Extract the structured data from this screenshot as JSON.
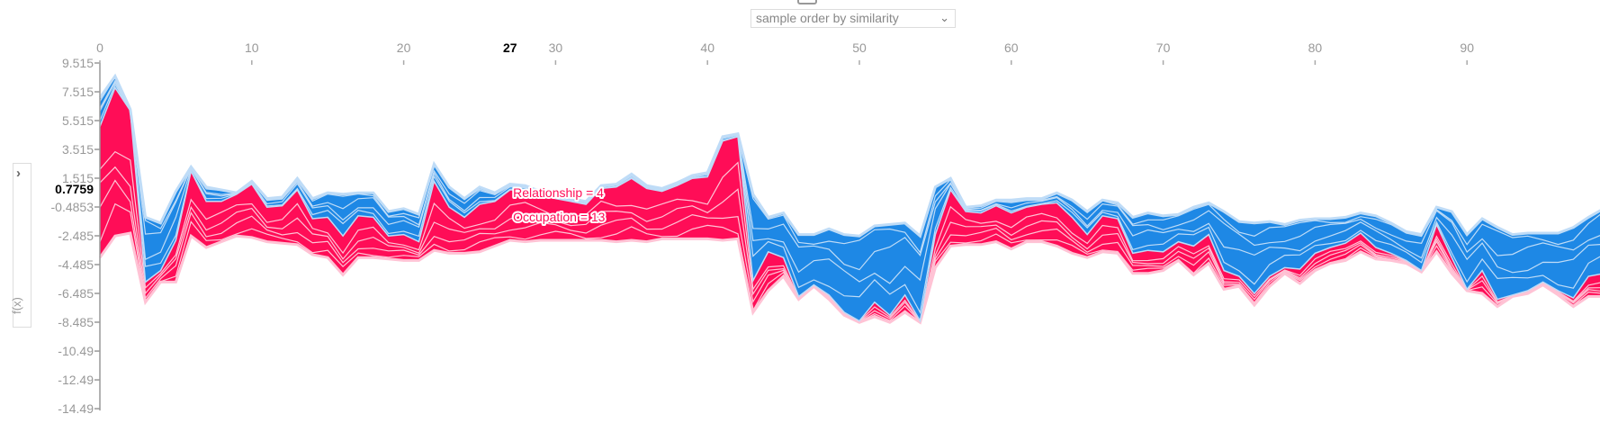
{
  "controls": {
    "order_select": "sample order by similarity",
    "ylabel_toggle": "f(x)"
  },
  "colors": {
    "positive": "#ff0d57",
    "negative": "#1e88e5",
    "positive_light": "#ffc3d5",
    "negative_light": "#bfdcf7"
  },
  "chart_data": {
    "type": "area",
    "title": "",
    "xlabel": "",
    "ylabel": "f(x)",
    "x_ticks": [
      "0",
      "10",
      "20",
      "30",
      "40",
      "50",
      "60",
      "70",
      "80",
      "90"
    ],
    "x_tick_values": [
      0,
      10,
      20,
      30,
      40,
      50,
      60,
      70,
      80,
      90
    ],
    "highlight_x": "27",
    "highlight_x_value": 27,
    "y_ticks": [
      "9.515",
      "7.515",
      "5.515",
      "3.515",
      "1.515",
      "-0.4853",
      "-2.485",
      "-4.485",
      "-6.485",
      "-8.485",
      "-10.49",
      "-12.49",
      "-14.49"
    ],
    "y_tick_values": [
      9.515,
      7.515,
      5.515,
      3.515,
      1.515,
      -0.4853,
      -2.485,
      -4.485,
      -6.485,
      -8.485,
      -10.49,
      -12.49,
      -14.49
    ],
    "ylim": [
      -14.49,
      9.515
    ],
    "xlim": [
      0,
      98.6
    ],
    "base_value_label": "0.7759",
    "base_value": 0.7759,
    "feature_labels": [
      {
        "text": "Relationship = 4",
        "x": 27.2,
        "y": 0.2
      },
      {
        "text": "Occupation = 13",
        "x": 27.2,
        "y": -1.5
      }
    ],
    "series": [
      {
        "name": "negative_top",
        "values": [
          7.1,
          8.6,
          6.3,
          -1.2,
          -1.6,
          0.6,
          2.3,
          0.9,
          0.7,
          0.5,
          1.3,
          0.1,
          0.2,
          1.5,
          0.1,
          0.5,
          0.4,
          0.5,
          0.5,
          -0.8,
          -0.6,
          -1.0,
          2.5,
          0.9,
          0.1,
          0.9,
          0.5,
          1.1,
          1.0,
          0.6,
          0.4,
          0.1,
          -0.1,
          1.0,
          1.1,
          1.8,
          1.0,
          0.8,
          1.2,
          1.7,
          1.9,
          4.4,
          4.6,
          0.4,
          -1.2,
          -0.9,
          -2.4,
          -2.4,
          -2.0,
          -2.4,
          -2.5,
          -1.8,
          -1.7,
          -1.6,
          -2.5,
          0.9,
          1.5,
          -0.5,
          -0.4,
          0.0,
          0.0,
          0.1,
          0.1,
          0.5,
          0.0,
          -0.8,
          0.0,
          -0.2,
          -1.2,
          -0.9,
          -1.1,
          -1.0,
          -0.5,
          -0.2,
          -0.8,
          -1.5,
          -1.6,
          -1.5,
          -1.7,
          -1.4,
          -1.3,
          -1.3,
          -1.2,
          -0.9,
          -1.1,
          -1.6,
          -2.2,
          -2.4,
          -0.5,
          -0.8,
          -2.4,
          -1.3,
          -1.9,
          -2.4,
          -2.3,
          -2.3,
          -2.3,
          -1.9,
          -1.2,
          -0.6
        ]
      },
      {
        "name": "f(x)",
        "values": [
          5.1,
          7.8,
          6.2,
          -5.7,
          -4.9,
          -2.8,
          2.0,
          -0.1,
          -0.1,
          0.4,
          1.1,
          -0.5,
          -0.4,
          0.7,
          -1.3,
          -1.2,
          -2.5,
          -1.1,
          -1.2,
          -2.5,
          -2.4,
          -2.9,
          1.3,
          -0.5,
          -1.2,
          -0.3,
          -0.1,
          0.7,
          0.7,
          0.4,
          0.1,
          -0.1,
          -0.3,
          0.8,
          0.9,
          1.5,
          0.8,
          0.6,
          1.0,
          1.5,
          1.6,
          4.1,
          4.4,
          -5.6,
          -3.6,
          -4.0,
          -6.7,
          -5.9,
          -6.6,
          -7.8,
          -8.4,
          -7.1,
          -8.0,
          -6.6,
          -8.4,
          -2.4,
          0.7,
          -0.8,
          -0.9,
          -0.4,
          -0.9,
          -0.5,
          -0.3,
          -0.2,
          -1.2,
          -2.4,
          -1.1,
          -1.3,
          -3.7,
          -3.5,
          -3.6,
          -2.9,
          -3.2,
          -2.4,
          -4.9,
          -5.3,
          -6.5,
          -5.3,
          -4.7,
          -4.8,
          -3.7,
          -3.3,
          -3.0,
          -2.3,
          -3.3,
          -3.7,
          -4.2,
          -4.9,
          -1.7,
          -4.0,
          -6.2,
          -4.9,
          -6.9,
          -6.6,
          -6.3,
          -5.7,
          -6.3,
          -6.8,
          -5.3,
          -5.1
        ]
      },
      {
        "name": "positive_bottom",
        "values": [
          -4.0,
          -2.5,
          -2.3,
          -7.1,
          -5.7,
          -5.7,
          -2.5,
          -3.3,
          -2.9,
          -2.5,
          -2.6,
          -2.9,
          -3.0,
          -3.1,
          -3.8,
          -4.0,
          -5.2,
          -4.0,
          -4.0,
          -4.1,
          -4.2,
          -4.2,
          -3.5,
          -3.7,
          -3.7,
          -3.6,
          -3.2,
          -2.8,
          -2.9,
          -2.8,
          -2.8,
          -2.8,
          -2.8,
          -2.8,
          -2.9,
          -2.8,
          -2.9,
          -2.7,
          -2.7,
          -2.7,
          -2.7,
          -2.8,
          -2.7,
          -7.8,
          -6.3,
          -5.3,
          -6.9,
          -6.0,
          -6.9,
          -8.0,
          -8.5,
          -8.1,
          -8.5,
          -7.8,
          -8.5,
          -4.7,
          -3.2,
          -3.1,
          -3.1,
          -2.9,
          -3.4,
          -2.9,
          -2.9,
          -3.2,
          -3.7,
          -4.0,
          -3.6,
          -3.7,
          -5.1,
          -5.1,
          -4.9,
          -4.2,
          -5.2,
          -4.4,
          -6.2,
          -6.0,
          -7.3,
          -6.0,
          -5.1,
          -5.8,
          -4.9,
          -4.4,
          -4.2,
          -3.6,
          -4.1,
          -4.2,
          -4.4,
          -5.0,
          -3.6,
          -5.1,
          -6.3,
          -6.5,
          -7.4,
          -6.7,
          -6.5,
          -5.9,
          -6.6,
          -7.4,
          -6.7,
          -6.7
        ]
      }
    ]
  }
}
